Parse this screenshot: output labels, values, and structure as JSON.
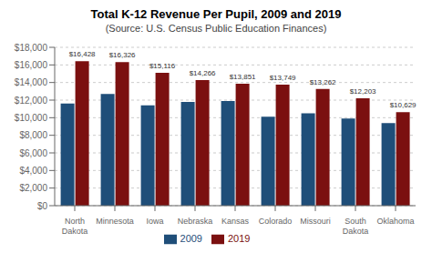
{
  "chart_data": {
    "type": "bar",
    "title": "Total K-12 Revenue Per Pupil, 2009 and 2019",
    "subtitle": "(Source: U.S. Census Public Education Finances)",
    "categories": [
      "North Dakota",
      "Minnesota",
      "Iowa",
      "Nebraska",
      "Kansas",
      "Colorado",
      "Missouri",
      "South Dakota",
      "Oklahoma"
    ],
    "series": [
      {
        "name": "2009",
        "color": "#1F4E79",
        "values": [
          11600,
          12700,
          11400,
          11800,
          11900,
          10100,
          10500,
          9900,
          9400
        ]
      },
      {
        "name": "2019",
        "color": "#7B1010",
        "values": [
          16428,
          16326,
          15116,
          14266,
          13851,
          13749,
          13262,
          12203,
          10629
        ],
        "data_labels": true,
        "value_labels": [
          "$16,428",
          "$16,326",
          "$15,116",
          "$14,266",
          "$13,851",
          "$13,749",
          "$13,262",
          "$12,203",
          "$10,629"
        ]
      }
    ],
    "ylim": [
      0,
      18000
    ],
    "yticks": [
      {
        "value": 0,
        "label": "$0"
      },
      {
        "value": 2000,
        "label": "$2,000"
      },
      {
        "value": 4000,
        "label": "$4,000"
      },
      {
        "value": 6000,
        "label": "$6,000"
      },
      {
        "value": 8000,
        "label": "$8,000"
      },
      {
        "value": 10000,
        "label": "$10,000"
      },
      {
        "value": 12000,
        "label": "$12,000"
      },
      {
        "value": 14000,
        "label": "$14,000"
      },
      {
        "value": 16000,
        "label": "$16,000"
      },
      {
        "value": 18000,
        "label": "$18,000"
      }
    ],
    "grid": true,
    "legend": "bottom"
  }
}
